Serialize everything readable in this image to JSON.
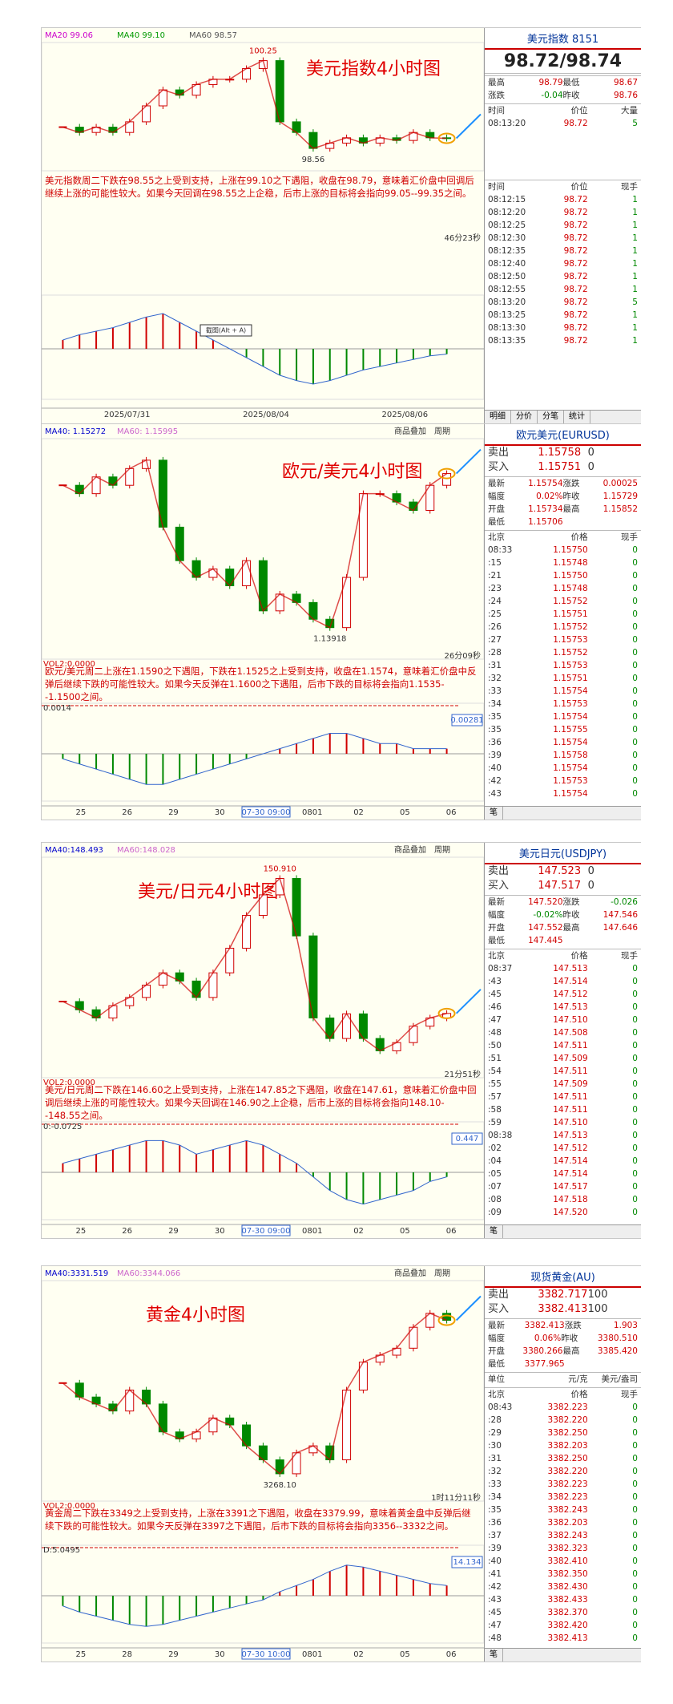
{
  "panels": [
    {
      "title": "美元指数4小时图",
      "ma_labels": [
        "MA20 99.06",
        "MA40 99.10",
        "MA60 98.57"
      ],
      "toolbar": [],
      "price_labels": {
        "high": "100.25",
        "low": "98.56"
      },
      "note": "美元指数周二下跌在98.55之上受到支持，上涨在99.10之下遇阻，收盘在98.79，意味着汇价盘中回调后继续上涨的可能性较大。如果今天回调在98.55之上企稳，后市上涨的目标将会指向99.05--99.35之间。",
      "timer": "46分23秒",
      "screenshot_hint": "截图(Alt + A)",
      "dates": [
        "2025/07/31",
        "2025/08/04",
        "2025/08/06"
      ],
      "closes": [
        99.0,
        98.9,
        99.0,
        98.9,
        99.1,
        99.4,
        99.7,
        99.6,
        99.8,
        99.9,
        99.9,
        100.1,
        100.25,
        99.1,
        98.9,
        98.6,
        98.7,
        98.8,
        98.7,
        98.8,
        98.75,
        98.9,
        98.8,
        98.79
      ],
      "ylim": [
        98.3,
        100.5
      ],
      "macd": [
        0.05,
        0.08,
        0.1,
        0.12,
        0.15,
        0.18,
        0.2,
        0.15,
        0.1,
        0.05,
        0,
        -0.05,
        -0.1,
        -0.15,
        -0.18,
        -0.2,
        -0.18,
        -0.15,
        -0.12,
        -0.1,
        -0.08,
        -0.06,
        -0.04,
        -0.03
      ],
      "macd_lim": [
        -0.25,
        0.25
      ],
      "quote": {
        "name": "美元指数",
        "code": "8151",
        "big": "98.72/98.74",
        "stats": [
          [
            "最高",
            "98.79",
            "最低",
            "98.67"
          ],
          [
            "涨跌",
            "-0.04",
            "昨收",
            "98.76"
          ]
        ],
        "top_header": [
          "时间",
          "价位",
          "大量"
        ],
        "top_ticks": [
          [
            "08:13:20",
            "98.72",
            "5"
          ]
        ],
        "list_header": [
          "时间",
          "价位",
          "现手"
        ],
        "ticks": [
          [
            "08:12:15",
            "98.72",
            "1"
          ],
          [
            "08:12:20",
            "98.72",
            "1"
          ],
          [
            "08:12:25",
            "98.72",
            "1"
          ],
          [
            "08:12:30",
            "98.72",
            "1"
          ],
          [
            "08:12:35",
            "98.72",
            "1"
          ],
          [
            "08:12:40",
            "98.72",
            "1"
          ],
          [
            "08:12:50",
            "98.72",
            "1"
          ],
          [
            "08:12:55",
            "98.72",
            "1"
          ],
          [
            "08:13:20",
            "98.72",
            "5"
          ],
          [
            "08:13:25",
            "98.72",
            "1"
          ],
          [
            "08:13:30",
            "98.72",
            "1"
          ],
          [
            "08:13:35",
            "98.72",
            "1"
          ]
        ],
        "tabs": [
          "明细",
          "分价",
          "分笔",
          "统计"
        ]
      }
    },
    {
      "title": "欧元/美元4小时图",
      "ma_labels": [
        "MA40: 1.15272",
        "MA60: 1.15995"
      ],
      "toolbar": [
        "商品叠加",
        "周期"
      ],
      "price_labels": {
        "low": "1.13918"
      },
      "note": "欧元/美元周二上涨在1.1590之下遇阻，下跌在1.1525之上受到支持，收盘在1.1574，意味着汇价盘中反弹后继续下跌的可能性较大。如果今天反弹在1.1600之下遇阻，后市下跌的目标将会指向1.1535--1.1500之间。",
      "timer": "26分09秒",
      "vol_label": "VOL2:0.0000",
      "macd_label": "0.0014",
      "macd_box": "0.00281",
      "dates": [
        "25",
        "26",
        "29",
        "30",
        "07-30 09:00",
        "0801",
        "02",
        "05",
        "06"
      ],
      "highlight_date": "07-30 09:00",
      "closes": [
        1.156,
        1.155,
        1.157,
        1.156,
        1.158,
        1.159,
        1.151,
        1.147,
        1.145,
        1.146,
        1.144,
        1.147,
        1.141,
        1.143,
        1.142,
        1.14,
        1.139,
        1.145,
        1.155,
        1.155,
        1.154,
        1.153,
        1.156,
        1.1574
      ],
      "ylim": [
        1.136,
        1.161
      ],
      "macd": [
        -0.001,
        -0.002,
        -0.003,
        -0.004,
        -0.005,
        -0.006,
        -0.006,
        -0.005,
        -0.004,
        -0.003,
        -0.002,
        -0.001,
        0.0,
        0.001,
        0.002,
        0.003,
        0.004,
        0.004,
        0.003,
        0.002,
        0.002,
        0.001,
        0.001,
        0.001
      ],
      "macd_lim": [
        -0.008,
        0.008
      ],
      "quote": {
        "name": "欧元美元(EURUSD)",
        "bidask": [
          [
            "卖出",
            "1.15758",
            "0"
          ],
          [
            "买入",
            "1.15751",
            "0"
          ]
        ],
        "stats": [
          [
            "最新",
            "1.15754",
            "涨跌",
            "0.00025"
          ],
          [
            "幅度",
            "0.02%",
            "昨收",
            "1.15729"
          ],
          [
            "开盘",
            "1.15734",
            "最高",
            "1.15852"
          ],
          [
            "最低",
            "1.15706"
          ]
        ],
        "list_header": [
          "北京",
          "价格",
          "现手"
        ],
        "ticks": [
          [
            "08:33",
            "1.15750",
            "0"
          ],
          [
            ":15",
            "1.15748",
            "0"
          ],
          [
            ":21",
            "1.15750",
            "0"
          ],
          [
            ":23",
            "1.15748",
            "0"
          ],
          [
            ":24",
            "1.15752",
            "0"
          ],
          [
            ":25",
            "1.15751",
            "0"
          ],
          [
            ":26",
            "1.15752",
            "0"
          ],
          [
            ":27",
            "1.15753",
            "0"
          ],
          [
            ":28",
            "1.15752",
            "0"
          ],
          [
            ":31",
            "1.15753",
            "0"
          ],
          [
            ":32",
            "1.15751",
            "0"
          ],
          [
            ":33",
            "1.15754",
            "0"
          ],
          [
            ":34",
            "1.15753",
            "0"
          ],
          [
            ":35",
            "1.15754",
            "0"
          ],
          [
            ":35",
            "1.15755",
            "0"
          ],
          [
            ":36",
            "1.15754",
            "0"
          ],
          [
            ":39",
            "1.15758",
            "0"
          ],
          [
            ":40",
            "1.15754",
            "0"
          ],
          [
            ":42",
            "1.15753",
            "0"
          ],
          [
            ":43",
            "1.15754",
            "0"
          ]
        ],
        "tabs": [
          "笔"
        ]
      }
    },
    {
      "title": "美元/日元4小时图",
      "ma_labels": [
        "MA40:148.493",
        "MA60:148.028"
      ],
      "toolbar": [
        "商品叠加",
        "周期"
      ],
      "price_labels": {
        "high": "150.910"
      },
      "note": "美元/日元周二下跌在146.60之上受到支持，上涨在147.85之下遇阻，收盘在147.61，意味着汇价盘中回调后继续上涨的可能性较大。如果今天回调在146.90之上企稳，后市上涨的目标将会指向148.10--148.55之间。",
      "timer": "21分51秒",
      "vol_label": "VOL2:0.0000",
      "macd_label": "0:-0.0725",
      "macd_box": "0.447",
      "dates": [
        "25",
        "26",
        "29",
        "30",
        "07-30 09:00",
        "0801",
        "02",
        "05",
        "06"
      ],
      "highlight_date": "07-30 09:00",
      "closes": [
        147.9,
        147.7,
        147.5,
        147.8,
        148.0,
        148.3,
        148.6,
        148.4,
        148.0,
        148.6,
        149.2,
        150.0,
        150.5,
        150.9,
        149.5,
        147.5,
        147.0,
        147.6,
        147.0,
        146.7,
        146.9,
        147.3,
        147.5,
        147.61
      ],
      "ylim": [
        146.2,
        151.3
      ],
      "macd": [
        0.1,
        0.15,
        0.2,
        0.25,
        0.3,
        0.35,
        0.35,
        0.3,
        0.2,
        0.25,
        0.3,
        0.35,
        0.3,
        0.2,
        0.1,
        -0.05,
        -0.2,
        -0.3,
        -0.35,
        -0.3,
        -0.25,
        -0.2,
        -0.1,
        -0.05
      ],
      "macd_lim": [
        -0.45,
        0.45
      ],
      "quote": {
        "name": "美元日元(USDJPY)",
        "bidask": [
          [
            "卖出",
            "147.523",
            "0"
          ],
          [
            "买入",
            "147.517",
            "0"
          ]
        ],
        "stats": [
          [
            "最新",
            "147.520",
            "涨跌",
            "-0.026"
          ],
          [
            "幅度",
            "-0.02%",
            "昨收",
            "147.546"
          ],
          [
            "开盘",
            "147.552",
            "最高",
            "147.646"
          ],
          [
            "最低",
            "147.445"
          ]
        ],
        "list_header": [
          "北京",
          "价格",
          "现手"
        ],
        "ticks": [
          [
            "08:37",
            "147.513",
            "0"
          ],
          [
            ":43",
            "147.514",
            "0"
          ],
          [
            ":45",
            "147.512",
            "0"
          ],
          [
            ":46",
            "147.513",
            "0"
          ],
          [
            ":47",
            "147.510",
            "0"
          ],
          [
            ":48",
            "147.508",
            "0"
          ],
          [
            ":50",
            "147.511",
            "0"
          ],
          [
            ":51",
            "147.509",
            "0"
          ],
          [
            ":54",
            "147.511",
            "0"
          ],
          [
            ":55",
            "147.509",
            "0"
          ],
          [
            ":57",
            "147.511",
            "0"
          ],
          [
            ":58",
            "147.511",
            "0"
          ],
          [
            ":59",
            "147.510",
            "0"
          ],
          [
            "08:38",
            "147.513",
            "0"
          ],
          [
            ":02",
            "147.512",
            "0"
          ],
          [
            ":04",
            "147.514",
            "0"
          ],
          [
            ":05",
            "147.514",
            "0"
          ],
          [
            ":07",
            "147.517",
            "0"
          ],
          [
            ":08",
            "147.518",
            "0"
          ],
          [
            ":09",
            "147.520",
            "0"
          ]
        ],
        "tabs": [
          "笔"
        ]
      }
    },
    {
      "title": "黄金4小时图",
      "ma_labels": [
        "MA40:3331.519",
        "MA60:3344.066"
      ],
      "toolbar": [
        "商品叠加",
        "周期"
      ],
      "price_labels": {
        "low": "3268.10"
      },
      "note": "黄金周二下跌在3349之上受到支持，上涨在3391之下遇阻，收盘在3379.99，意味着黄金盘中反弹后继续下跌的可能性较大。如果今天反弹在3397之下遇阻，后市下跌的目标将会指向3356--3332之间。",
      "timer": "1时11分11秒",
      "vol_label": "VOL2:0.0000",
      "macd_label": "D:5.0495",
      "macd_box": "14.134",
      "dates": [
        "25",
        "28",
        "29",
        "30",
        "07-30 10:00",
        "0801",
        "02",
        "05",
        "06"
      ],
      "highlight_date": "07-30 10:00",
      "closes": [
        3335,
        3325,
        3320,
        3315,
        3330,
        3320,
        3300,
        3295,
        3300,
        3310,
        3305,
        3290,
        3280,
        3270,
        3285,
        3290,
        3280,
        3330,
        3350,
        3355,
        3360,
        3375,
        3385,
        3380
      ],
      "ylim": [
        3255,
        3405
      ],
      "macd": [
        -5,
        -8,
        -10,
        -12,
        -14,
        -15,
        -14,
        -12,
        -10,
        -8,
        -6,
        -4,
        -2,
        2,
        5,
        8,
        12,
        15,
        14,
        12,
        10,
        8,
        6,
        5
      ],
      "macd_lim": [
        -20,
        20
      ],
      "quote": {
        "name": "现货黄金(AU)",
        "bidask": [
          [
            "卖出",
            "3382.717",
            "100"
          ],
          [
            "买入",
            "3382.413",
            "100"
          ]
        ],
        "stats": [
          [
            "最新",
            "3382.413",
            "涨跌",
            "1.903"
          ],
          [
            "幅度",
            "0.06%",
            "昨收",
            "3380.510"
          ],
          [
            "开盘",
            "3380.266",
            "最高",
            "3385.420"
          ],
          [
            "最低",
            "3377.965"
          ]
        ],
        "unit_row": [
          "单位",
          "元/克",
          "美元/盎司"
        ],
        "list_header": [
          "北京",
          "价格",
          "现手"
        ],
        "ticks": [
          [
            "08:43",
            "3382.223",
            "0"
          ],
          [
            ":28",
            "3382.220",
            "0"
          ],
          [
            ":29",
            "3382.250",
            "0"
          ],
          [
            ":30",
            "3382.203",
            "0"
          ],
          [
            ":31",
            "3382.250",
            "0"
          ],
          [
            ":32",
            "3382.220",
            "0"
          ],
          [
            ":33",
            "3382.223",
            "0"
          ],
          [
            ":34",
            "3382.223",
            "0"
          ],
          [
            ":35",
            "3382.243",
            "0"
          ],
          [
            ":36",
            "3382.203",
            "0"
          ],
          [
            ":37",
            "3382.243",
            "0"
          ],
          [
            ":39",
            "3382.323",
            "0"
          ],
          [
            ":40",
            "3382.410",
            "0"
          ],
          [
            ":41",
            "3382.350",
            "0"
          ],
          [
            ":42",
            "3382.430",
            "0"
          ],
          [
            ":43",
            "3382.433",
            "0"
          ],
          [
            ":45",
            "3382.370",
            "0"
          ],
          [
            ":47",
            "3382.420",
            "0"
          ],
          [
            ":48",
            "3382.413",
            "0"
          ]
        ],
        "tabs": [
          "笔"
        ]
      }
    }
  ]
}
